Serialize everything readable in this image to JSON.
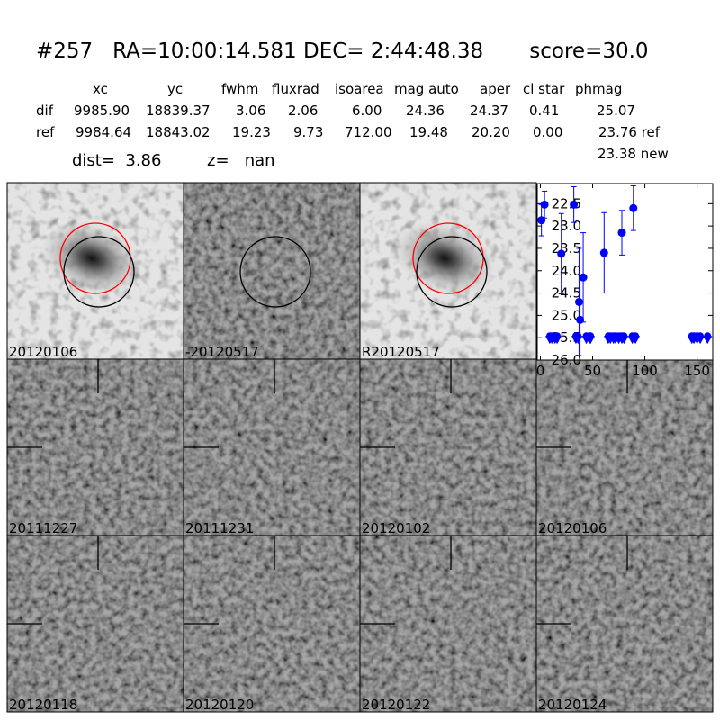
{
  "header": {
    "title": "#257   RA=10:00:14.581 DEC= 2:44:48.38       score=30.0"
  },
  "table": {
    "columns": [
      "xc",
      "yc",
      "fwhm",
      "fluxrad",
      "isoarea",
      "mag auto",
      "aper",
      "cl star",
      "phmag"
    ],
    "rows": [
      [
        "dif",
        "9985.90",
        "18839.37",
        "3.06",
        "2.06",
        "6.00",
        "24.36",
        "24.37",
        "0.41",
        "25.07"
      ],
      [
        "ref",
        "9984.64",
        "18843.02",
        "19.23",
        "9.73",
        "712.00",
        "19.48",
        "20.20",
        "0.00",
        "23.76 ref"
      ]
    ],
    "extra": "23.38 new"
  },
  "dist": "dist=  3.86",
  "z": "z=   nan",
  "stamps": [
    {
      "label": "20120106"
    },
    {
      "label": "-20120517"
    },
    {
      "label": "R20120517"
    },
    {
      "label": "20111227"
    },
    {
      "label": "20111231"
    },
    {
      "label": "20120102"
    },
    {
      "label": "20120106",
      "label_color": "#ff0000"
    },
    {
      "label": "20120118"
    },
    {
      "label": "20120120"
    },
    {
      "label": "20120122"
    },
    {
      "label": "20120124"
    }
  ],
  "chart_data": {
    "type": "scatter",
    "color": "#0000ff",
    "x": [
      1,
      4,
      20,
      32,
      37,
      38,
      41,
      61,
      78,
      89
    ],
    "values": [
      22.87,
      22.52,
      23.62,
      22.52,
      24.7,
      25.1,
      24.15,
      23.6,
      23.15,
      22.6
    ],
    "errors": [
      0.35,
      0.3,
      0.9,
      0.4,
      1.2,
      1.0,
      1.0,
      0.9,
      0.5,
      0.5
    ],
    "upper_limits": {
      "x": [
        9,
        11,
        14,
        16,
        34,
        36,
        44,
        47,
        48,
        65,
        67,
        70,
        72,
        75,
        78,
        80,
        88,
        91,
        145,
        147,
        150,
        153,
        160
      ],
      "values": [
        25.5,
        25.5,
        25.5,
        25.5,
        25.5,
        25.5,
        25.5,
        25.5,
        25.5,
        25.5,
        25.5,
        25.5,
        25.5,
        25.5,
        25.5,
        25.5,
        25.5,
        25.5,
        25.5,
        25.5,
        25.5,
        25.5,
        25.5
      ]
    },
    "xlim": [
      -3,
      165
    ],
    "xticks": [
      0,
      50,
      100,
      150
    ],
    "ylim": [
      26.0,
      22.05
    ],
    "yticks": [
      22.5,
      {
        "value": 23,
        "label": "23.0"
      },
      23.5,
      {
        "value": 24,
        "label": "24.0"
      },
      24.5,
      {
        "value": 25,
        "label": "25.0"
      },
      25.5,
      {
        "value": 26,
        "label": "26.0"
      }
    ]
  }
}
